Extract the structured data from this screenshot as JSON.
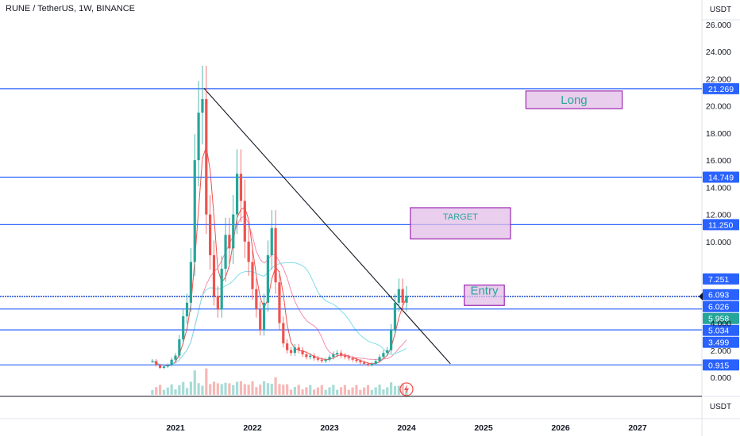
{
  "header": {
    "symbol_title": "RUNE / TetherUS, 1W, BINANCE"
  },
  "price_axis": {
    "currency_top": "USDT",
    "currency_bottom": "USDT"
  },
  "chart_data": {
    "type": "candlestick",
    "symbol": "RUNE / TetherUS",
    "interval": "1W",
    "exchange": "BINANCE",
    "ylim": [
      -1.5,
      27
    ],
    "y_ticks": [
      "26.000",
      "24.000",
      "22.000",
      "20.000",
      "18.000",
      "16.000",
      "14.000",
      "12.000",
      "10.000",
      "4.000",
      "2.000",
      "0.000"
    ],
    "x_ticks": [
      "2021",
      "2022",
      "2023",
      "2024",
      "2025",
      "2026",
      "2027"
    ],
    "horizontal_levels": [
      {
        "value": 21.269,
        "label": "21.269"
      },
      {
        "value": 14.749,
        "label": "14.749"
      },
      {
        "value": 11.25,
        "label": "11.250"
      },
      {
        "value": 7.251,
        "label": "7.251"
      },
      {
        "value": 6.093,
        "label": "6.093"
      },
      {
        "value": 6.026,
        "label": "6.026"
      },
      {
        "value": 5.958,
        "label": "5.958",
        "current": true
      },
      {
        "value": 5.034,
        "label": "5.034"
      },
      {
        "value": 3.499,
        "label": "3.499"
      },
      {
        "value": 0.915,
        "label": "0.915"
      }
    ],
    "boxes": [
      {
        "label": "Long",
        "time_range": [
          2025.55,
          2026.8
        ],
        "price_range": [
          19.8,
          21.1
        ]
      },
      {
        "label": "TARGET",
        "time_range": [
          2024.05,
          2025.35
        ],
        "price_range": [
          10.2,
          12.5
        ]
      },
      {
        "label": "Entry",
        "time_range": [
          2024.75,
          2025.27
        ],
        "price_range": [
          5.3,
          6.8
        ]
      }
    ],
    "trendline": {
      "from": [
        2021.37,
        21.3
      ],
      "to": [
        2024.57,
        1.0
      ]
    },
    "closes": [
      [
        2020.7,
        1.2
      ],
      [
        2020.75,
        0.9
      ],
      [
        2020.8,
        0.7
      ],
      [
        2020.85,
        0.8
      ],
      [
        2020.9,
        0.9
      ],
      [
        2020.95,
        1.3
      ],
      [
        2021.0,
        1.6
      ],
      [
        2021.05,
        2.8
      ],
      [
        2021.1,
        4.5
      ],
      [
        2021.15,
        5.5
      ],
      [
        2021.2,
        8.5
      ],
      [
        2021.25,
        16.0
      ],
      [
        2021.3,
        19.5
      ],
      [
        2021.35,
        20.5
      ],
      [
        2021.4,
        12.0
      ],
      [
        2021.45,
        9.0
      ],
      [
        2021.5,
        6.0
      ],
      [
        2021.55,
        5.0
      ],
      [
        2021.6,
        8.0
      ],
      [
        2021.65,
        10.5
      ],
      [
        2021.7,
        9.5
      ],
      [
        2021.75,
        12.0
      ],
      [
        2021.8,
        15.0
      ],
      [
        2021.85,
        13.0
      ],
      [
        2021.9,
        10.0
      ],
      [
        2021.95,
        8.5
      ],
      [
        2022.0,
        6.5
      ],
      [
        2022.05,
        5.0
      ],
      [
        2022.1,
        3.5
      ],
      [
        2022.15,
        5.5
      ],
      [
        2022.2,
        9.0
      ],
      [
        2022.25,
        11.0
      ],
      [
        2022.3,
        7.0
      ],
      [
        2022.35,
        4.0
      ],
      [
        2022.4,
        2.5
      ],
      [
        2022.45,
        2.0
      ],
      [
        2022.5,
        1.8
      ],
      [
        2022.55,
        2.2
      ],
      [
        2022.6,
        2.0
      ],
      [
        2022.65,
        1.7
      ],
      [
        2022.7,
        1.5
      ],
      [
        2022.75,
        1.6
      ],
      [
        2022.8,
        1.4
      ],
      [
        2022.85,
        1.3
      ],
      [
        2022.9,
        1.2
      ],
      [
        2022.95,
        1.3
      ],
      [
        2023.0,
        1.5
      ],
      [
        2023.05,
        1.7
      ],
      [
        2023.1,
        1.8
      ],
      [
        2023.15,
        1.6
      ],
      [
        2023.2,
        1.5
      ],
      [
        2023.25,
        1.4
      ],
      [
        2023.3,
        1.3
      ],
      [
        2023.35,
        1.2
      ],
      [
        2023.4,
        1.1
      ],
      [
        2023.45,
        1.0
      ],
      [
        2023.5,
        0.9
      ],
      [
        2023.55,
        1.0
      ],
      [
        2023.6,
        1.2
      ],
      [
        2023.65,
        1.5
      ],
      [
        2023.7,
        1.8
      ],
      [
        2023.75,
        2.0
      ],
      [
        2023.8,
        3.5
      ],
      [
        2023.85,
        5.5
      ],
      [
        2023.9,
        6.5
      ],
      [
        2023.95,
        5.5
      ],
      [
        2024.0,
        6.0
      ]
    ]
  }
}
